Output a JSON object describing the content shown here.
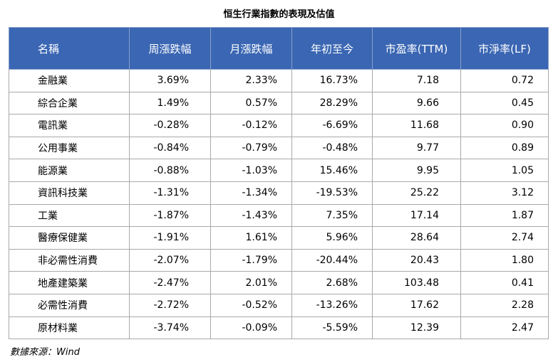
{
  "title": "恒生行業指數的表現及估值",
  "table": {
    "headers": [
      "名稱",
      "周漲跌幅",
      "月漲跌幅",
      "年初至今",
      "市盈率(TTM)",
      "市淨率(LF)"
    ],
    "rows": [
      [
        "金融業",
        "3.69%",
        "2.33%",
        "16.73%",
        "7.18",
        "0.72"
      ],
      [
        "綜合企業",
        "1.49%",
        "0.57%",
        "28.29%",
        "9.66",
        "0.45"
      ],
      [
        "電訊業",
        "-0.28%",
        "-0.12%",
        "-6.69%",
        "11.68",
        "0.90"
      ],
      [
        "公用事業",
        "-0.84%",
        "-0.79%",
        "-0.48%",
        "9.77",
        "0.89"
      ],
      [
        "能源業",
        "-0.88%",
        "-1.03%",
        "15.46%",
        "9.95",
        "1.05"
      ],
      [
        "資訊科技業",
        "-1.31%",
        "-1.34%",
        "-19.53%",
        "25.22",
        "3.12"
      ],
      [
        "工業",
        "-1.87%",
        "-1.43%",
        "7.35%",
        "17.14",
        "1.87"
      ],
      [
        "醫療保健業",
        "-1.91%",
        "1.61%",
        "5.96%",
        "28.64",
        "2.74"
      ],
      [
        "非必需性消費",
        "-2.07%",
        "-1.79%",
        "-20.44%",
        "20.43",
        "1.80"
      ],
      [
        "地產建築業",
        "-2.47%",
        "2.01%",
        "2.68%",
        "103.48",
        "0.41"
      ],
      [
        "必需性消費",
        "-2.72%",
        "-0.52%",
        "-13.26%",
        "17.62",
        "2.28"
      ],
      [
        "原材料業",
        "-3.74%",
        "-0.09%",
        "-5.59%",
        "12.39",
        "2.47"
      ]
    ]
  },
  "source": "數據來源：Wind",
  "colors": {
    "header_background": "#3a66b3",
    "header_text": "#ffffff"
  }
}
